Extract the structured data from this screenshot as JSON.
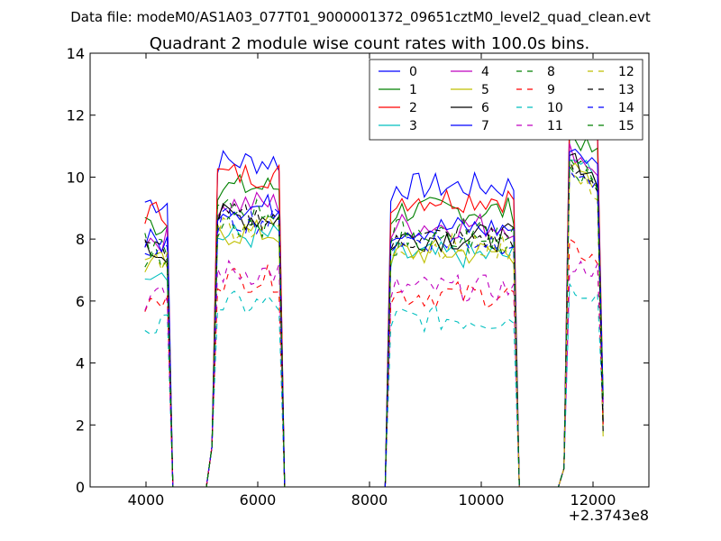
{
  "chart_data": {
    "type": "line",
    "suptitle": "Data file: modeM0/AS1A03_077T01_9000001372_09651cztM0_level2_quad_clean.evt",
    "title": "Quadrant 2 module wise count rates with 100.0s bins.",
    "xlabel": "",
    "ylabel": "",
    "x_offset_label": "+2.3743e8",
    "xlim": [
      3000,
      13000
    ],
    "ylim": [
      0,
      14
    ],
    "x_ticks": [
      "4000",
      "6000",
      "8000",
      "10000",
      "12000"
    ],
    "y_ticks": [
      "0",
      "2",
      "4",
      "6",
      "8",
      "10",
      "12",
      "14"
    ],
    "grid": false,
    "legend_placement": "top-right",
    "segments": [
      [
        3980,
        4380
      ],
      [
        5180,
        6380
      ],
      [
        8380,
        10580
      ],
      [
        11480,
        12180
      ]
    ],
    "series": [
      {
        "name": "0",
        "color": "#0000ff",
        "dash": "solid",
        "level": 10.0,
        "top": 12.5
      },
      {
        "name": "1",
        "color": "#008000",
        "dash": "solid",
        "level": 9.2,
        "top": 11.5
      },
      {
        "name": "2",
        "color": "#ff0000",
        "dash": "solid",
        "level": 9.6,
        "top": 12.3
      },
      {
        "name": "3",
        "color": "#00bfbf",
        "dash": "solid",
        "level": 7.7,
        "top": 11.0
      },
      {
        "name": "4",
        "color": "#bf00bf",
        "dash": "solid",
        "level": 8.7,
        "top": 11.0
      },
      {
        "name": "5",
        "color": "#bfbf00",
        "dash": "solid",
        "level": 7.8,
        "top": 10.5
      },
      {
        "name": "6",
        "color": "#000000",
        "dash": "solid",
        "level": 8.3,
        "top": 10.8
      },
      {
        "name": "7",
        "color": "#0000ff",
        "dash": "solid",
        "level": 8.6,
        "top": 11.2
      },
      {
        "name": "8",
        "color": "#008000",
        "dash": "dashed",
        "level": 8.1,
        "top": 10.5
      },
      {
        "name": "9",
        "color": "#ff0000",
        "dash": "dashed",
        "level": 6.4,
        "top": 7.8
      },
      {
        "name": "10",
        "color": "#00bfbf",
        "dash": "dashed",
        "level": 5.6,
        "top": 6.5
      },
      {
        "name": "11",
        "color": "#bf00bf",
        "dash": "dashed",
        "level": 6.6,
        "top": 7.2
      },
      {
        "name": "12",
        "color": "#bfbf00",
        "dash": "dashed",
        "level": 8.0,
        "top": 10.2
      },
      {
        "name": "13",
        "color": "#000000",
        "dash": "dashed",
        "level": 8.3,
        "top": 10.4
      },
      {
        "name": "14",
        "color": "#0000ff",
        "dash": "dashed",
        "level": 8.2,
        "top": 10.4
      },
      {
        "name": "15",
        "color": "#008000",
        "dash": "dashed",
        "level": 8.5,
        "top": 10.6
      }
    ]
  }
}
